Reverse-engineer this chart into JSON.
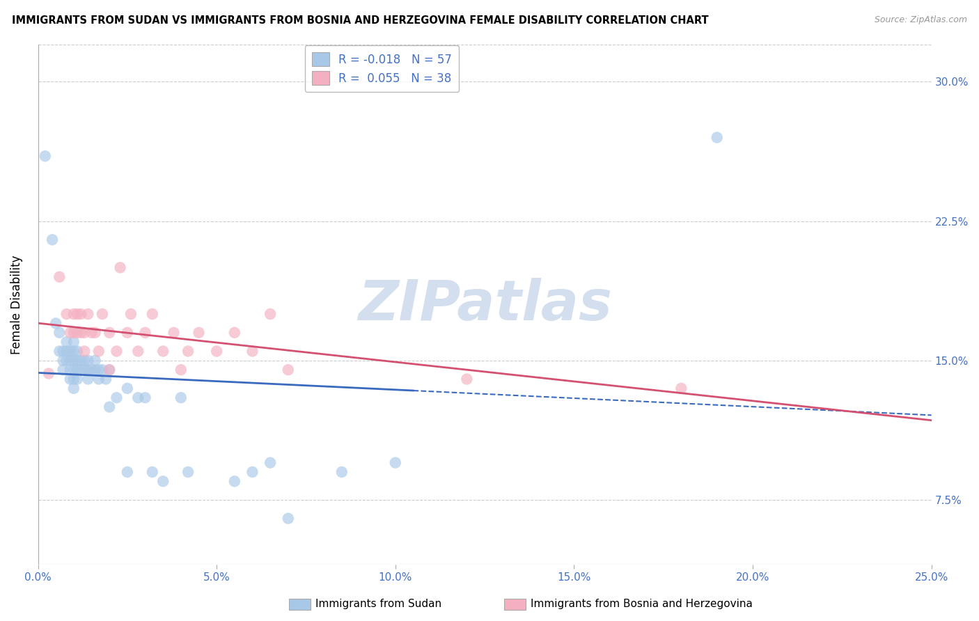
{
  "title": "IMMIGRANTS FROM SUDAN VS IMMIGRANTS FROM BOSNIA AND HERZEGOVINA FEMALE DISABILITY CORRELATION CHART",
  "source": "Source: ZipAtlas.com",
  "ylabel": "Female Disability",
  "xlim": [
    0.0,
    0.25
  ],
  "ylim": [
    0.04,
    0.32
  ],
  "xtick_vals": [
    0.0,
    0.05,
    0.1,
    0.15,
    0.2,
    0.25
  ],
  "xtick_labels": [
    "0.0%",
    "5.0%",
    "10.0%",
    "15.0%",
    "20.0%",
    "25.0%"
  ],
  "ytick_labels": [
    "7.5%",
    "15.0%",
    "22.5%",
    "30.0%"
  ],
  "ytick_vals": [
    0.075,
    0.15,
    0.225,
    0.3
  ],
  "legend1_label": "Immigrants from Sudan",
  "legend2_label": "Immigrants from Bosnia and Herzegovina",
  "r1": "-0.018",
  "n1": "57",
  "r2": "0.055",
  "n2": "38",
  "color_blue": "#a8c8e8",
  "color_pink": "#f4afc0",
  "trend_blue": "#3a6abf",
  "trend_pink": "#d45070",
  "watermark_color": "#c8d8ea",
  "sudan_x": [
    0.002,
    0.004,
    0.005,
    0.006,
    0.006,
    0.007,
    0.007,
    0.007,
    0.008,
    0.008,
    0.008,
    0.009,
    0.009,
    0.009,
    0.009,
    0.01,
    0.01,
    0.01,
    0.01,
    0.01,
    0.01,
    0.011,
    0.011,
    0.011,
    0.011,
    0.012,
    0.012,
    0.013,
    0.013,
    0.014,
    0.014,
    0.014,
    0.015,
    0.016,
    0.016,
    0.017,
    0.017,
    0.018,
    0.019,
    0.02,
    0.02,
    0.022,
    0.025,
    0.025,
    0.028,
    0.03,
    0.032,
    0.035,
    0.04,
    0.042,
    0.055,
    0.06,
    0.065,
    0.07,
    0.085,
    0.1,
    0.19
  ],
  "sudan_y": [
    0.26,
    0.215,
    0.17,
    0.165,
    0.155,
    0.155,
    0.15,
    0.145,
    0.16,
    0.155,
    0.15,
    0.155,
    0.15,
    0.145,
    0.14,
    0.16,
    0.155,
    0.15,
    0.145,
    0.14,
    0.135,
    0.155,
    0.15,
    0.145,
    0.14,
    0.15,
    0.145,
    0.15,
    0.145,
    0.15,
    0.145,
    0.14,
    0.145,
    0.15,
    0.145,
    0.145,
    0.14,
    0.145,
    0.14,
    0.145,
    0.125,
    0.13,
    0.135,
    0.09,
    0.13,
    0.13,
    0.09,
    0.085,
    0.13,
    0.09,
    0.085,
    0.09,
    0.095,
    0.065,
    0.09,
    0.095,
    0.27
  ],
  "bosnia_x": [
    0.003,
    0.006,
    0.008,
    0.009,
    0.01,
    0.01,
    0.011,
    0.011,
    0.012,
    0.012,
    0.013,
    0.013,
    0.014,
    0.015,
    0.016,
    0.017,
    0.018,
    0.02,
    0.02,
    0.022,
    0.023,
    0.025,
    0.026,
    0.028,
    0.03,
    0.032,
    0.035,
    0.038,
    0.04,
    0.042,
    0.045,
    0.05,
    0.055,
    0.06,
    0.065,
    0.07,
    0.12,
    0.18
  ],
  "bosnia_y": [
    0.143,
    0.195,
    0.175,
    0.165,
    0.175,
    0.165,
    0.175,
    0.165,
    0.175,
    0.165,
    0.165,
    0.155,
    0.175,
    0.165,
    0.165,
    0.155,
    0.175,
    0.165,
    0.145,
    0.155,
    0.2,
    0.165,
    0.175,
    0.155,
    0.165,
    0.175,
    0.155,
    0.165,
    0.145,
    0.155,
    0.165,
    0.155,
    0.165,
    0.155,
    0.175,
    0.145,
    0.14,
    0.135
  ]
}
